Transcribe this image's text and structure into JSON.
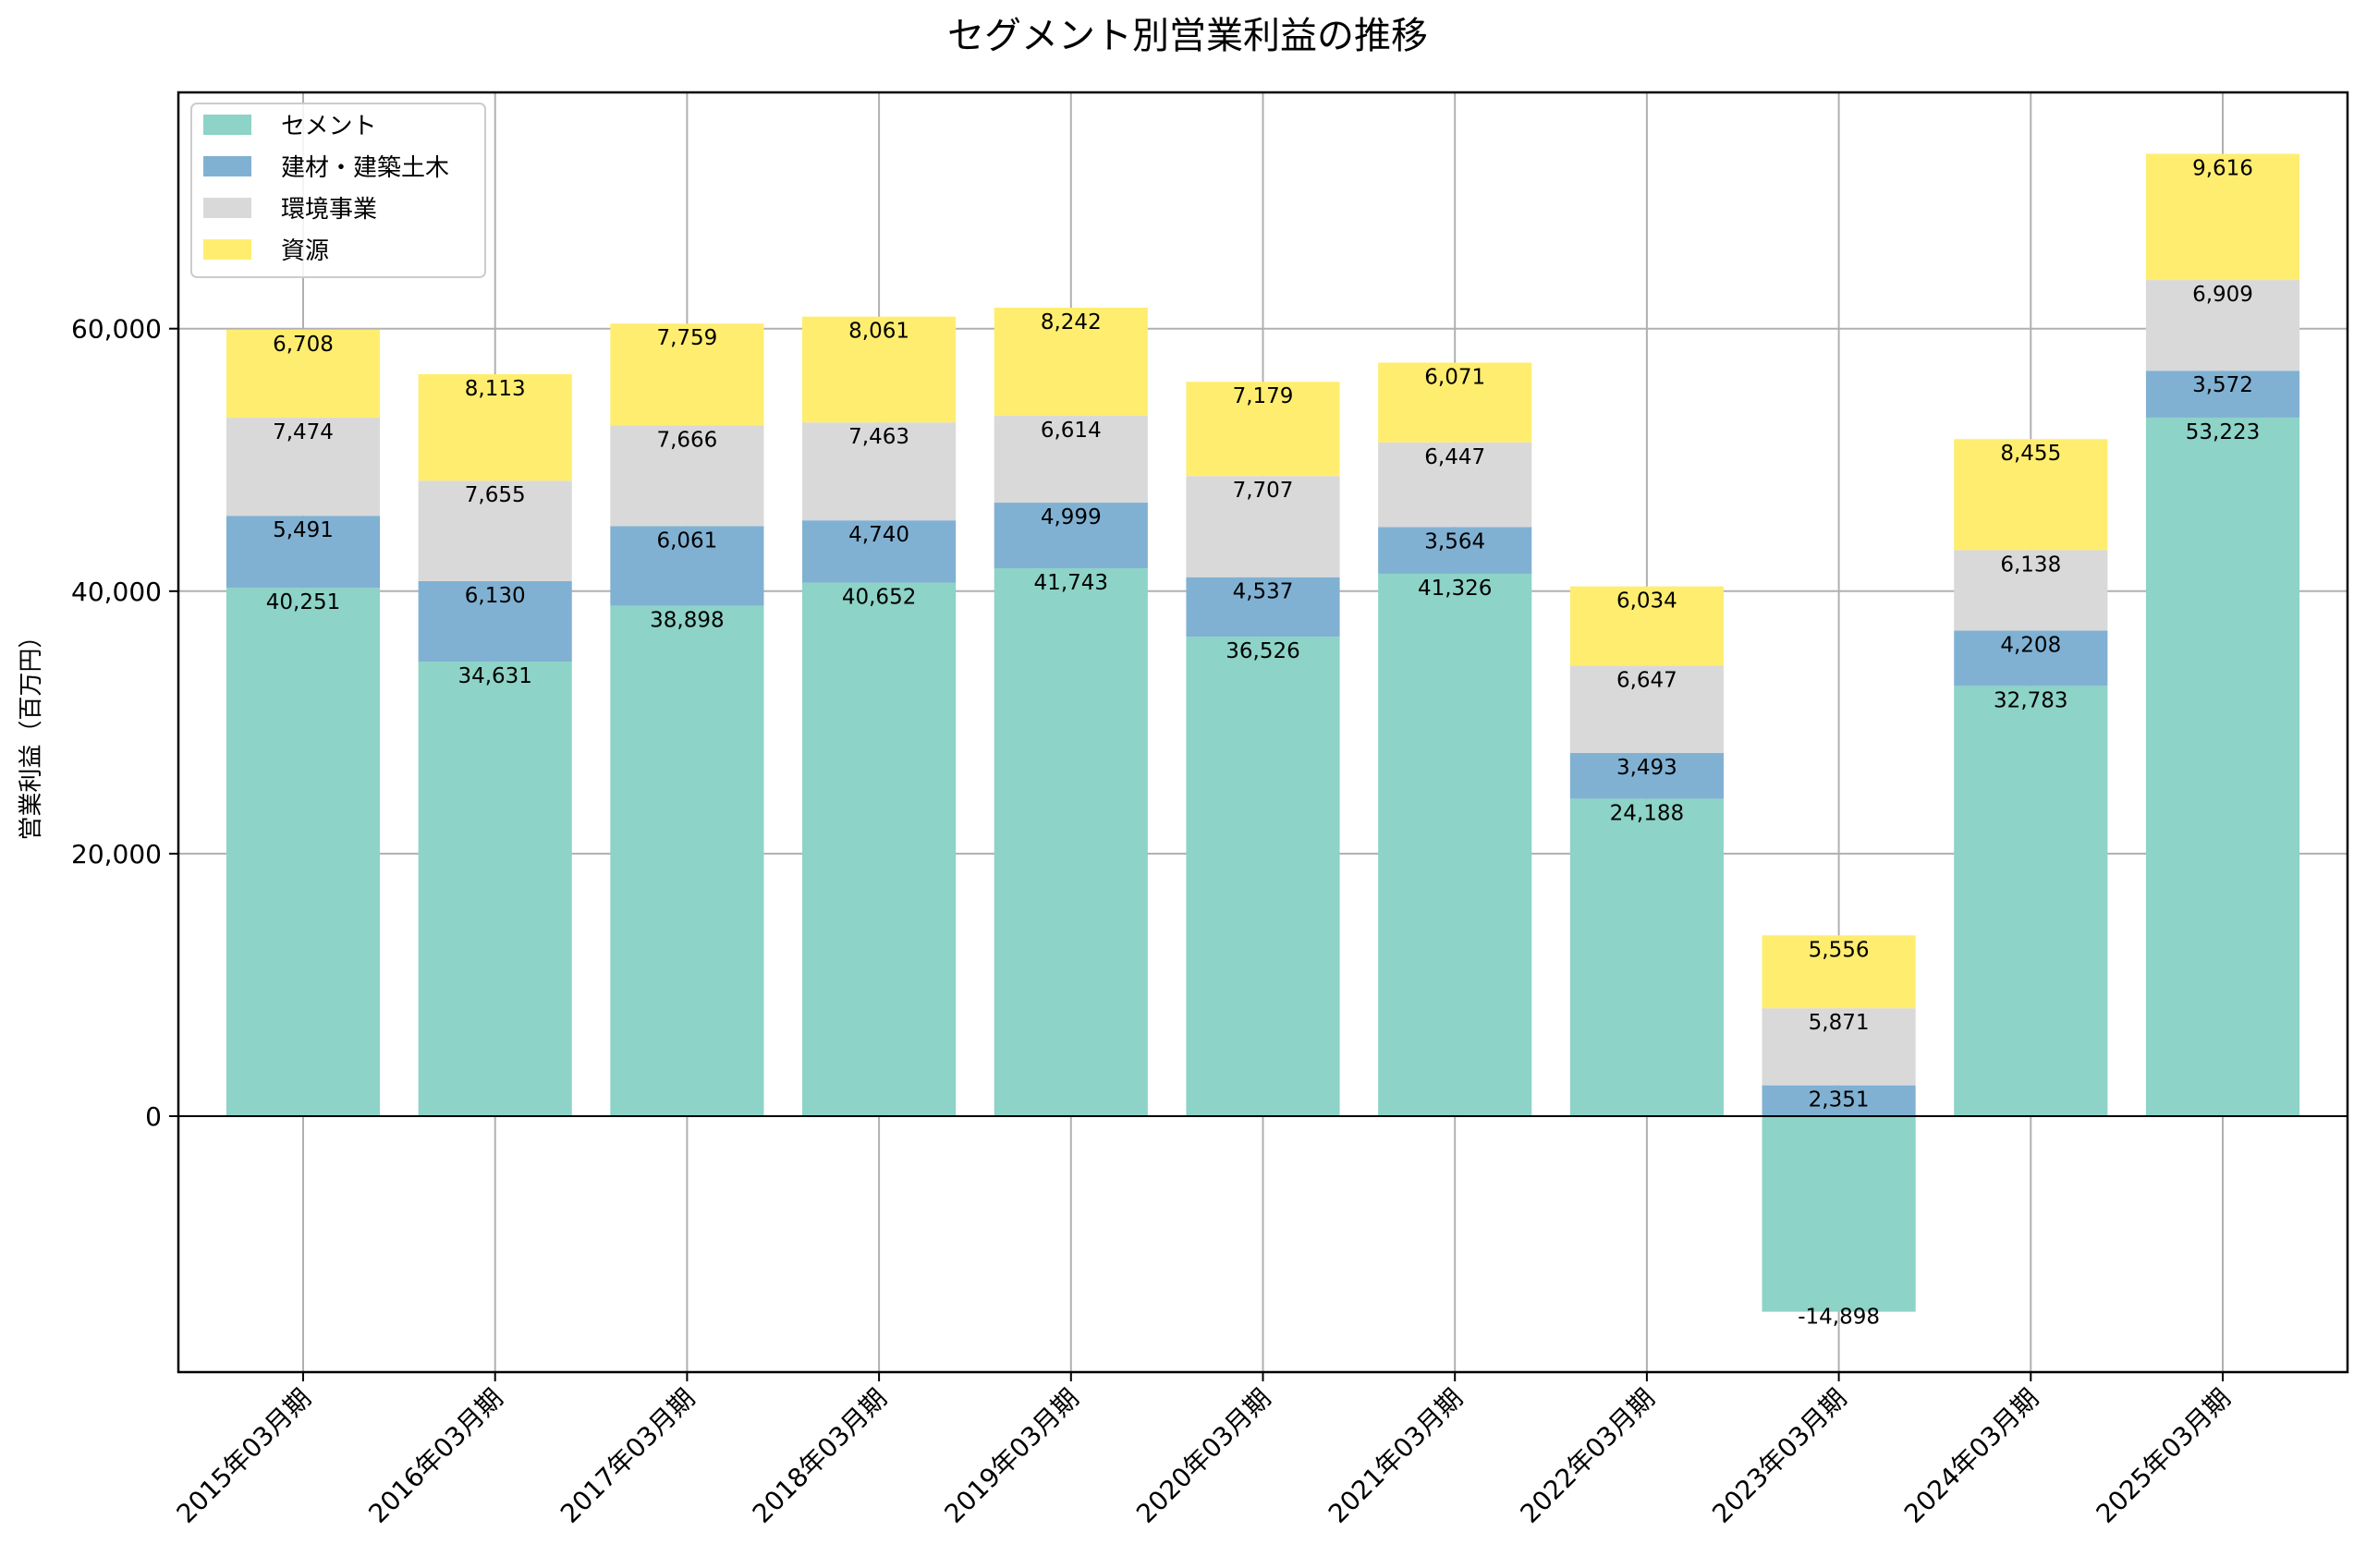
{
  "chart_data": {
    "type": "bar",
    "stacked": true,
    "title": "セグメント別営業利益の推移",
    "ylabel": "営業利益（百万円）",
    "xlabel": "",
    "ylim": [
      -19500,
      78000
    ],
    "yticks": [
      0,
      20000,
      40000,
      60000
    ],
    "ytick_labels": [
      "0",
      "20,000",
      "40,000",
      "60,000"
    ],
    "grid": true,
    "legend_position": "top-left",
    "categories": [
      "2015年03月期",
      "2016年03月期",
      "2017年03月期",
      "2018年03月期",
      "2019年03月期",
      "2020年03月期",
      "2021年03月期",
      "2022年03月期",
      "2023年03月期",
      "2024年03月期",
      "2025年03月期"
    ],
    "series": [
      {
        "name": "セメント",
        "color": "#8dd3c7",
        "values": [
          40251,
          34631,
          38898,
          40652,
          41743,
          36526,
          41326,
          24188,
          -14898,
          32783,
          53223
        ],
        "labels": [
          "40,251",
          "34,631",
          "38,898",
          "40,652",
          "41,743",
          "36,526",
          "41,326",
          "24,188",
          "-14,898",
          "32,783",
          "53,223"
        ]
      },
      {
        "name": "建材・建築土木",
        "color": "#80b1d3",
        "values": [
          5491,
          6130,
          6061,
          4740,
          4999,
          4537,
          3564,
          3493,
          2351,
          4208,
          3572
        ],
        "labels": [
          "5,491",
          "6,130",
          "6,061",
          "4,740",
          "4,999",
          "4,537",
          "3,564",
          "3,493",
          "2,351",
          "4,208",
          "3,572"
        ]
      },
      {
        "name": "環境事業",
        "color": "#d9d9d9",
        "values": [
          7474,
          7655,
          7666,
          7463,
          6614,
          7707,
          6447,
          6647,
          5871,
          6138,
          6909
        ],
        "labels": [
          "7,474",
          "7,655",
          "7,666",
          "7,463",
          "6,614",
          "7,707",
          "6,447",
          "6,647",
          "5,871",
          "6,138",
          "6,909"
        ]
      },
      {
        "name": "資源",
        "color": "#ffed6f",
        "values": [
          6708,
          8113,
          7759,
          8061,
          8242,
          7179,
          6071,
          6034,
          5556,
          8455,
          9616
        ],
        "labels": [
          "6,708",
          "8,113",
          "7,759",
          "8,061",
          "8,242",
          "7,179",
          "6,071",
          "6,034",
          "5,556",
          "8,455",
          "9,616"
        ]
      }
    ]
  }
}
